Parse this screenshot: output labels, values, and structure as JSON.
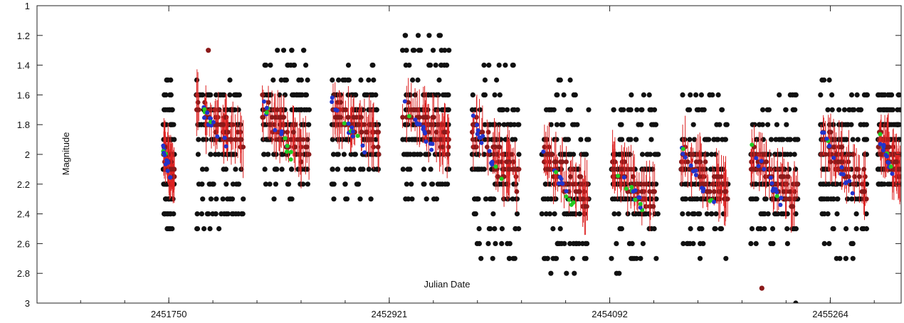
{
  "chart_data": {
    "type": "scatter",
    "title": "",
    "xlabel": "Julian Date",
    "ylabel": "Magnitude",
    "xlim": [
      2451050,
      2455640
    ],
    "ylim": [
      1,
      3
    ],
    "y_inverted": true,
    "grid": false,
    "x_ticks": [
      2451750,
      2452921,
      2454092,
      2455264
    ],
    "y_ticks": [
      1,
      1.2,
      1.4,
      1.6,
      1.8,
      2,
      2.2,
      2.4,
      2.6,
      2.8,
      3
    ],
    "colors": {
      "visual_points": "#111111",
      "mean_points": "#8b1a1a",
      "error_bars": "#dd2222",
      "blue_points": "#2233cc",
      "green_points": "#22cc22"
    },
    "segments": [
      {
        "center": 2451750,
        "width": 60,
        "min": 1.9,
        "max": 2.2,
        "black": [
          1.5,
          2.5
        ]
      },
      {
        "center": 2452021,
        "width": 250,
        "min": 1.6,
        "max": 2.0,
        "black": [
          1.5,
          2.5
        ]
      },
      {
        "center": 2452371,
        "width": 250,
        "min": 1.6,
        "max": 2.1,
        "black": [
          1.3,
          2.3
        ]
      },
      {
        "center": 2452741,
        "width": 250,
        "min": 1.6,
        "max": 2.0,
        "black": [
          1.4,
          2.3
        ]
      },
      {
        "center": 2453116,
        "width": 250,
        "min": 1.6,
        "max": 2.0,
        "black": [
          1.2,
          2.3
        ]
      },
      {
        "center": 2453486,
        "width": 250,
        "min": 1.7,
        "max": 2.3,
        "black": [
          1.4,
          2.7
        ]
      },
      {
        "center": 2453856,
        "width": 250,
        "min": 1.9,
        "max": 2.4,
        "black": [
          1.5,
          2.8
        ]
      },
      {
        "center": 2454226,
        "width": 250,
        "min": 2.0,
        "max": 2.4,
        "black": [
          1.6,
          2.8
        ]
      },
      {
        "center": 2454596,
        "width": 250,
        "min": 1.9,
        "max": 2.4,
        "black": [
          1.6,
          2.7
        ]
      },
      {
        "center": 2454966,
        "width": 250,
        "min": 1.9,
        "max": 2.4,
        "black": [
          1.6,
          2.6
        ]
      },
      {
        "center": 2455336,
        "width": 250,
        "min": 1.8,
        "max": 2.3,
        "black": [
          1.5,
          2.7
        ]
      },
      {
        "center": 2455576,
        "width": 120,
        "min": 1.8,
        "max": 2.2,
        "black": [
          1.6,
          2.2
        ]
      }
    ],
    "outliers": [
      {
        "x": 2451960,
        "y": 1.3,
        "color": "#8b1a1a"
      },
      {
        "x": 2454900,
        "y": 2.9,
        "color": "#8b1a1a"
      },
      {
        "x": 2455080,
        "y": 3.0,
        "color": "#111111"
      }
    ]
  }
}
